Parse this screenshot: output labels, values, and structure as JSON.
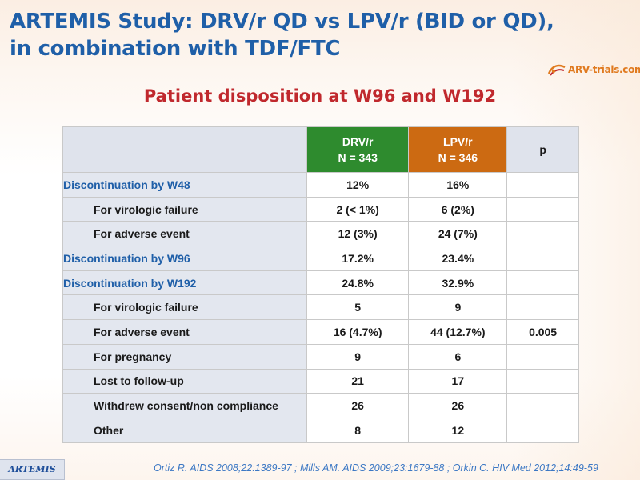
{
  "slide": {
    "title_line1": "ARTEMIS Study: DRV/r QD vs LPV/r (BID or QD),",
    "title_line2": "in combination with TDF/FTC",
    "subtitle": "Patient disposition at W96 and W192",
    "logo_text": "ARV-trials.com",
    "footer_tag": "ARTEMIS",
    "reference": "Ortiz R. AIDS 2008;22:1389-97 ;  Mills AM. AIDS 2009;23:1679-88 ; Orkin C. HIV Med 2012;14:49-59"
  },
  "colors": {
    "title": "#1f5fa8",
    "subtitle": "#c0282d",
    "drv_header": "#2e8b2e",
    "lpv_header": "#cc6a12",
    "label_bg": "#e3e7ef",
    "reference": "#3c78c4"
  },
  "table": {
    "header": {
      "drv_line1": "DRV/r",
      "drv_line2": "N = 343",
      "lpv_line1": "LPV/r",
      "lpv_line2": "N = 346",
      "p": "p"
    },
    "rows": [
      {
        "label": "Discontinuation by W48",
        "level": "main",
        "drv": "12%",
        "lpv": "16%",
        "p": ""
      },
      {
        "label": "For virologic failure",
        "level": "sub",
        "drv": "2 (< 1%)",
        "lpv": "6 (2%)",
        "p": ""
      },
      {
        "label": "For adverse event",
        "level": "sub",
        "drv": "12 (3%)",
        "lpv": "24 (7%)",
        "p": ""
      },
      {
        "label": "Discontinuation by W96",
        "level": "main",
        "drv": "17.2%",
        "lpv": "23.4%",
        "p": ""
      },
      {
        "label": "Discontinuation by W192",
        "level": "main",
        "drv": "24.8%",
        "lpv": "32.9%",
        "p": ""
      },
      {
        "label": "For virologic failure",
        "level": "sub",
        "drv": "5",
        "lpv": "9",
        "p": ""
      },
      {
        "label": "For adverse event",
        "level": "sub",
        "drv": "16 (4.7%)",
        "lpv": "44 (12.7%)",
        "p": "0.005"
      },
      {
        "label": "For pregnancy",
        "level": "sub",
        "drv": "9",
        "lpv": "6",
        "p": ""
      },
      {
        "label": "Lost to follow-up",
        "level": "sub",
        "drv": "21",
        "lpv": "17",
        "p": ""
      },
      {
        "label": "Withdrew consent/non compliance",
        "level": "sub",
        "drv": "26",
        "lpv": "26",
        "p": ""
      },
      {
        "label": "Other",
        "level": "sub",
        "drv": "8",
        "lpv": "12",
        "p": ""
      }
    ]
  }
}
